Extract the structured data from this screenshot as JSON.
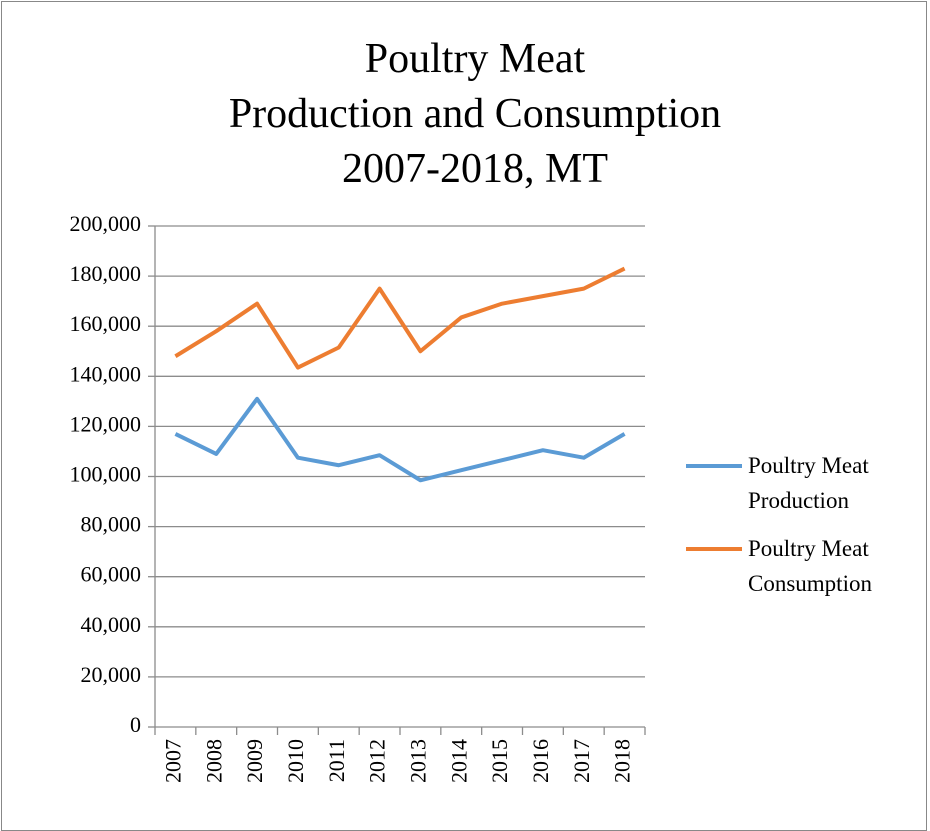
{
  "chart_data": {
    "type": "line",
    "title": "Poultry Meat\nProduction and Consumption\n2007-2018, MT",
    "categories": [
      "2007",
      "2008",
      "2009",
      "2010",
      "2011",
      "2012",
      "2013",
      "2014",
      "2015",
      "2016",
      "2017",
      "2018"
    ],
    "series": [
      {
        "name": "Poultry Meat Production",
        "color": "#5b9bd5",
        "values": [
          117000,
          109000,
          131000,
          107500,
          104500,
          108500,
          98500,
          102500,
          106500,
          110500,
          107500,
          117000
        ]
      },
      {
        "name": "Poultry Meat Consumption",
        "color": "#ed7d31",
        "values": [
          148000,
          158000,
          169000,
          143500,
          151500,
          175000,
          150000,
          163500,
          169000,
          172000,
          175000,
          183000
        ]
      }
    ],
    "ylim": [
      0,
      200000
    ],
    "yticks": [
      0,
      {
        "value": 20000,
        "label": "20,000"
      },
      {
        "value": 40000,
        "label": "40,000"
      },
      {
        "value": 60000,
        "label": "60,000"
      },
      {
        "value": 80000,
        "label": "80,000"
      },
      {
        "value": 100000,
        "label": "100,000"
      },
      {
        "value": 120000,
        "label": "120,000"
      },
      {
        "value": 140000,
        "label": "140,000"
      },
      {
        "value": 160000,
        "label": "160,000"
      },
      {
        "value": 180000,
        "label": "180,000"
      },
      {
        "value": 200000,
        "label": "200,000"
      }
    ],
    "grid": true,
    "legend": "right"
  }
}
